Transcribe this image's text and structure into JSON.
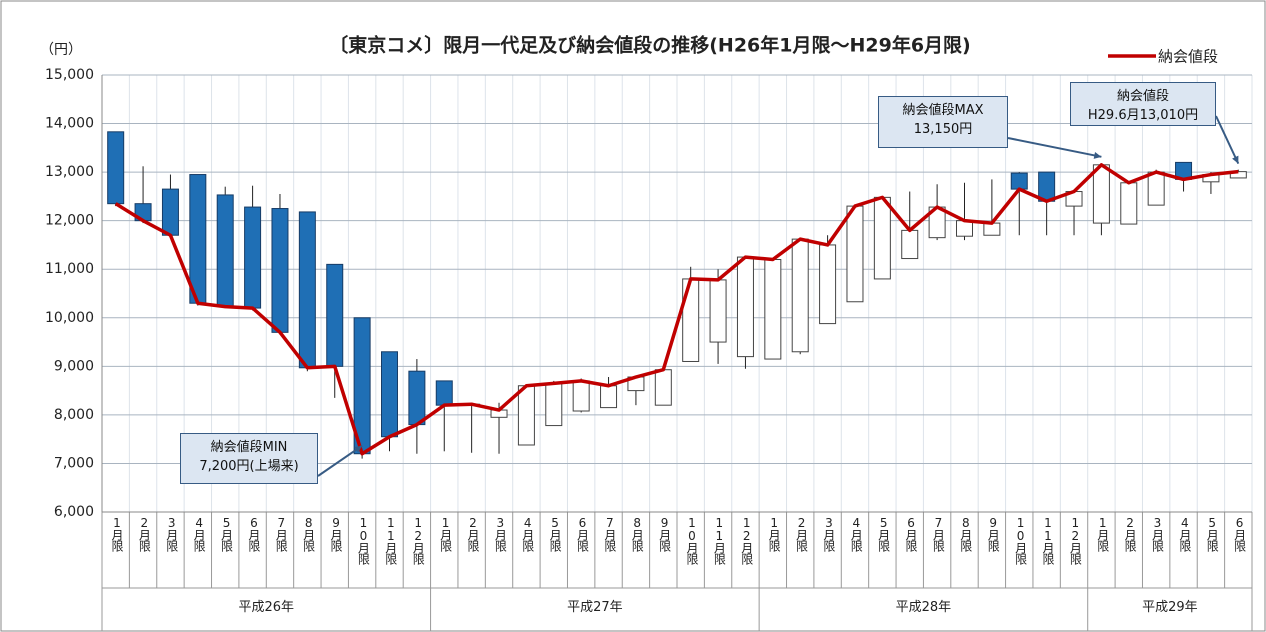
{
  "chart_data": {
    "type": "candlestick",
    "title": "〔東京コメ〕限月一代足及び納会値段の推移(H26年1月限～H29年6月限)",
    "y_unit": "（円）",
    "categories": [
      "1月限",
      "2月限",
      "3月限",
      "4月限",
      "5月限",
      "6月限",
      "7月限",
      "8月限",
      "9月限",
      "10月限",
      "11月限",
      "12月限",
      "1月限",
      "2月限",
      "3月限",
      "4月限",
      "5月限",
      "6月限",
      "7月限",
      "8月限",
      "9月限",
      "10月限",
      "11月限",
      "12月限",
      "1月限",
      "2月限",
      "3月限",
      "4月限",
      "5月限",
      "6月限",
      "7月限",
      "8月限",
      "9月限",
      "10月限",
      "11月限",
      "12月限",
      "1月限",
      "2月限",
      "3月限",
      "4月限",
      "5月限",
      "6月限"
    ],
    "groups": [
      "平成26年",
      "平成27年",
      "平成28年",
      "平成29年"
    ],
    "open": [
      13830,
      12350,
      12650,
      12950,
      12530,
      12280,
      12250,
      12180,
      11100,
      10000,
      9300,
      8900,
      8700,
      8200,
      7950,
      7380,
      7780,
      8080,
      8150,
      8500,
      8200,
      9100,
      9500,
      9200,
      9150,
      9300,
      9880,
      10330,
      10800,
      11220,
      11650,
      11680,
      11700,
      12980,
      13000,
      12300,
      11950,
      11930,
      12320,
      13200,
      12800,
      12880
    ],
    "high": [
      13830,
      13120,
      12950,
      12950,
      12700,
      12720,
      12550,
      12180,
      11100,
      10000,
      9300,
      9150,
      8700,
      8250,
      8250,
      8600,
      8700,
      8750,
      8780,
      8800,
      8930,
      11050,
      11000,
      11250,
      11200,
      11650,
      11700,
      12300,
      12500,
      12600,
      12750,
      12780,
      12850,
      13000,
      13000,
      12600,
      13150,
      12800,
      13050,
      13200,
      13000,
      13050
    ],
    "low": [
      12300,
      11950,
      11650,
      10250,
      10200,
      10150,
      9650,
      8900,
      8350,
      7100,
      7250,
      7200,
      7250,
      7220,
      7200,
      7380,
      7780,
      8050,
      8150,
      8200,
      8200,
      9100,
      9050,
      8950,
      9150,
      9250,
      9880,
      10330,
      10800,
      11220,
      11600,
      11600,
      11700,
      11700,
      11700,
      11700,
      11700,
      11930,
      12320,
      12600,
      12550,
      12880
    ],
    "series": [
      {
        "name": "納会値段",
        "color": "#c00000",
        "values": [
          12350,
          12000,
          11700,
          10300,
          10230,
          10200,
          9700,
          8970,
          9000,
          7200,
          7550,
          7800,
          8200,
          8220,
          8100,
          8600,
          8650,
          8700,
          8600,
          8780,
          8930,
          10800,
          10780,
          11250,
          11200,
          11620,
          11500,
          12300,
          12480,
          11800,
          12280,
          12000,
          11950,
          12650,
          12400,
          12600,
          13150,
          12780,
          13000,
          12850,
          12950,
          13010
        ]
      }
    ],
    "up_color": "#ffffff",
    "down_color": "#1f6fb5",
    "ylim": [
      6000,
      15000
    ],
    "yticks": [
      {
        "value": 6000,
        "label": "6,000"
      },
      {
        "value": 7000,
        "label": "7,000"
      },
      {
        "value": 8000,
        "label": "8,000"
      },
      {
        "value": 9000,
        "label": "9,000"
      },
      {
        "value": 10000,
        "label": "10,000"
      },
      {
        "value": 11000,
        "label": "11,000"
      },
      {
        "value": 12000,
        "label": "12,000"
      },
      {
        "value": 13000,
        "label": "13,000"
      },
      {
        "value": 14000,
        "label": "14,000"
      },
      {
        "value": 15000,
        "label": "15,000"
      }
    ],
    "grid": true,
    "legend": "top-right",
    "annotations": [
      {
        "lines": [
          "納会値段MIN",
          "7,200円(上場来)"
        ]
      },
      {
        "lines": [
          "納会値段MAX",
          "13,150円"
        ]
      },
      {
        "lines": [
          "納会値段",
          "H29.6月13,010円"
        ]
      }
    ]
  }
}
